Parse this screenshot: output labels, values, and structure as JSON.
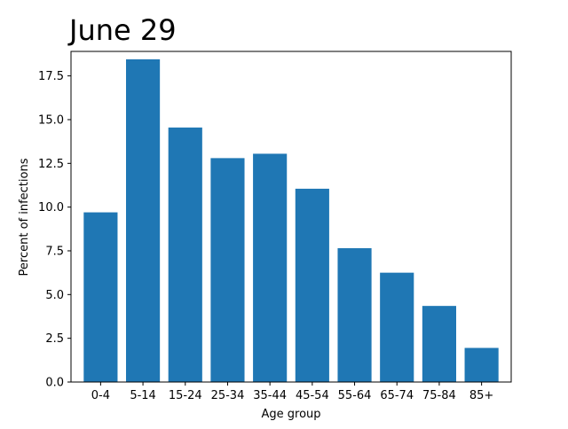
{
  "chart_data": {
    "type": "bar",
    "title": "June 29",
    "xlabel": "Age group",
    "ylabel": "Percent of infections",
    "categories": [
      "0-4",
      "5-14",
      "15-24",
      "25-34",
      "35-44",
      "45-54",
      "55-64",
      "65-74",
      "75-84",
      "85+"
    ],
    "values": [
      9.7,
      18.45,
      14.55,
      12.8,
      13.05,
      11.05,
      7.65,
      6.25,
      4.35,
      1.95
    ],
    "ylim": [
      0,
      18.9
    ],
    "yticks": [
      0.0,
      2.5,
      5.0,
      7.5,
      10.0,
      12.5,
      15.0,
      17.5
    ],
    "ytick_labels": [
      "0.0",
      "2.5",
      "5.0",
      "7.5",
      "10.0",
      "12.5",
      "15.0",
      "17.5"
    ],
    "grid": false,
    "bar_color": "#1f77b4"
  }
}
